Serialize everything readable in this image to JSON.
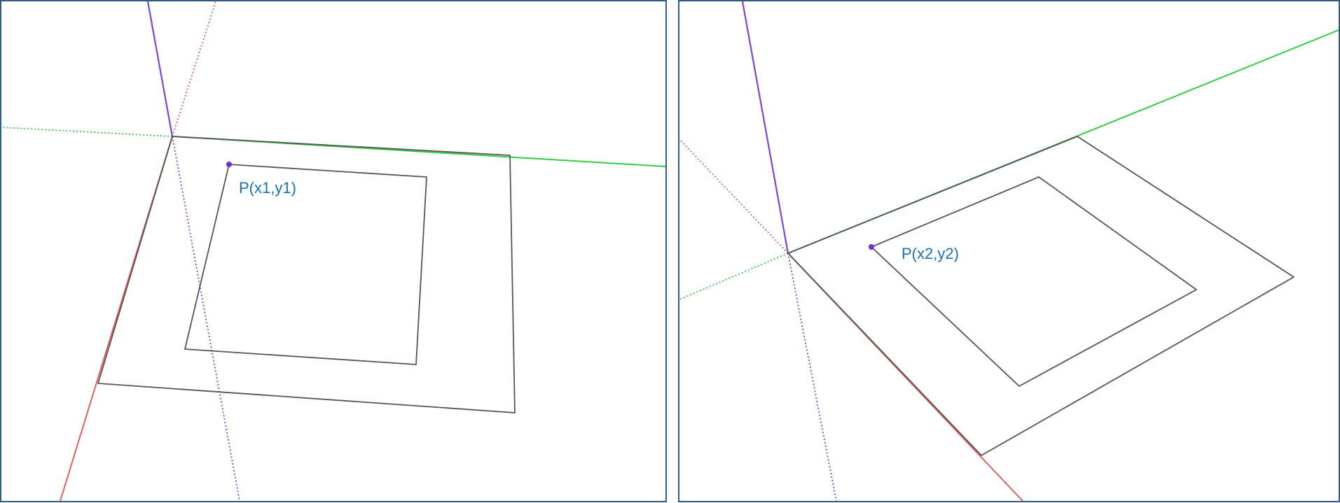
{
  "views": [
    {
      "name": "perspective-view-1",
      "point_label": "P(x1,y1)"
    },
    {
      "name": "perspective-view-2",
      "point_label": "P(x2,y2)"
    }
  ],
  "colors": {
    "frame_border": "#2f5d8a",
    "blue_axis": "#7b45d6",
    "red_axis": "#e0605a",
    "green_axis": "#33cc44",
    "edge": "#555555",
    "point": "#6a2ee0",
    "label": "#1a6fb5"
  }
}
